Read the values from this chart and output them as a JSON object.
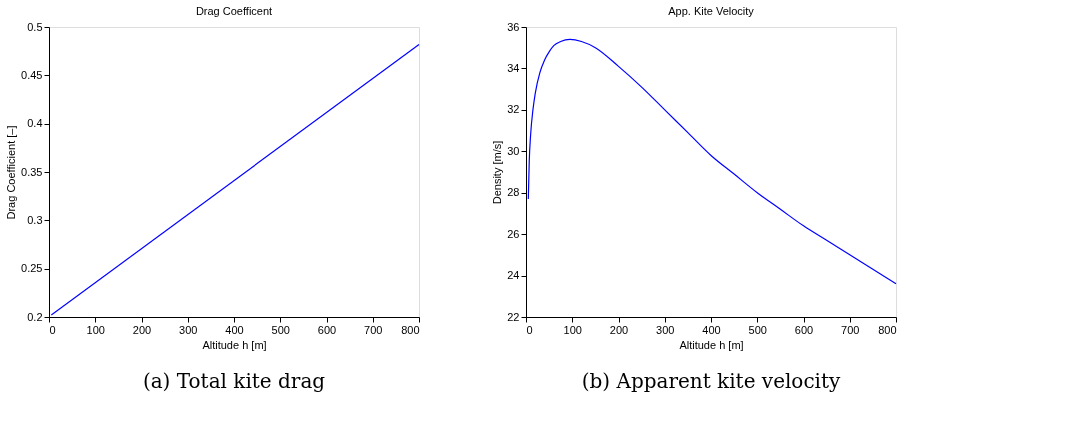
{
  "chart_data": [
    {
      "type": "line",
      "title": "Drag Coefficent",
      "xlabel": "Altitude h [m]",
      "ylabel": "Drag Coefficient [–]",
      "annotations": [
        "(a) Total kite drag"
      ],
      "series": [
        {
          "color": "#0000ff",
          "x": [
            5,
            800
          ],
          "values": [
            0.202,
            0.482
          ]
        }
      ],
      "xlim": [
        0,
        800
      ],
      "xticks": [
        0,
        100,
        200,
        300,
        400,
        500,
        600,
        700,
        800
      ],
      "ylim": [
        0.2,
        0.5
      ],
      "yticks": [
        0.2,
        0.25,
        0.3,
        0.35,
        0.4,
        0.45,
        0.5
      ],
      "grid": false
    },
    {
      "type": "line",
      "title": "App. Kite Velocity",
      "xlabel": "Altitude h [m]",
      "ylabel": "Density [m/s]",
      "annotations": [
        "(b) Apparent kite velocity"
      ],
      "series": [
        {
          "color": "#0000ff",
          "x": [
            5,
            7,
            10,
            15,
            20,
            30,
            40,
            50,
            60,
            75,
            95,
            120,
            150,
            200,
            250,
            300,
            350,
            400,
            450,
            500,
            550,
            600,
            650,
            700,
            750,
            800
          ],
          "values": [
            27.7,
            29.5,
            30.8,
            32.0,
            32.8,
            33.8,
            34.4,
            34.8,
            35.1,
            35.3,
            35.4,
            35.3,
            35.0,
            34.1,
            33.1,
            32.0,
            30.9,
            29.8,
            28.9,
            28.0,
            27.2,
            26.4,
            25.7,
            25.0,
            24.3,
            23.6
          ]
        }
      ],
      "xlim": [
        0,
        800
      ],
      "xticks": [
        0,
        100,
        200,
        300,
        400,
        500,
        600,
        700,
        800
      ],
      "ylim": [
        22,
        36
      ],
      "yticks": [
        22,
        24,
        26,
        28,
        30,
        32,
        34,
        36
      ],
      "grid": false
    }
  ]
}
